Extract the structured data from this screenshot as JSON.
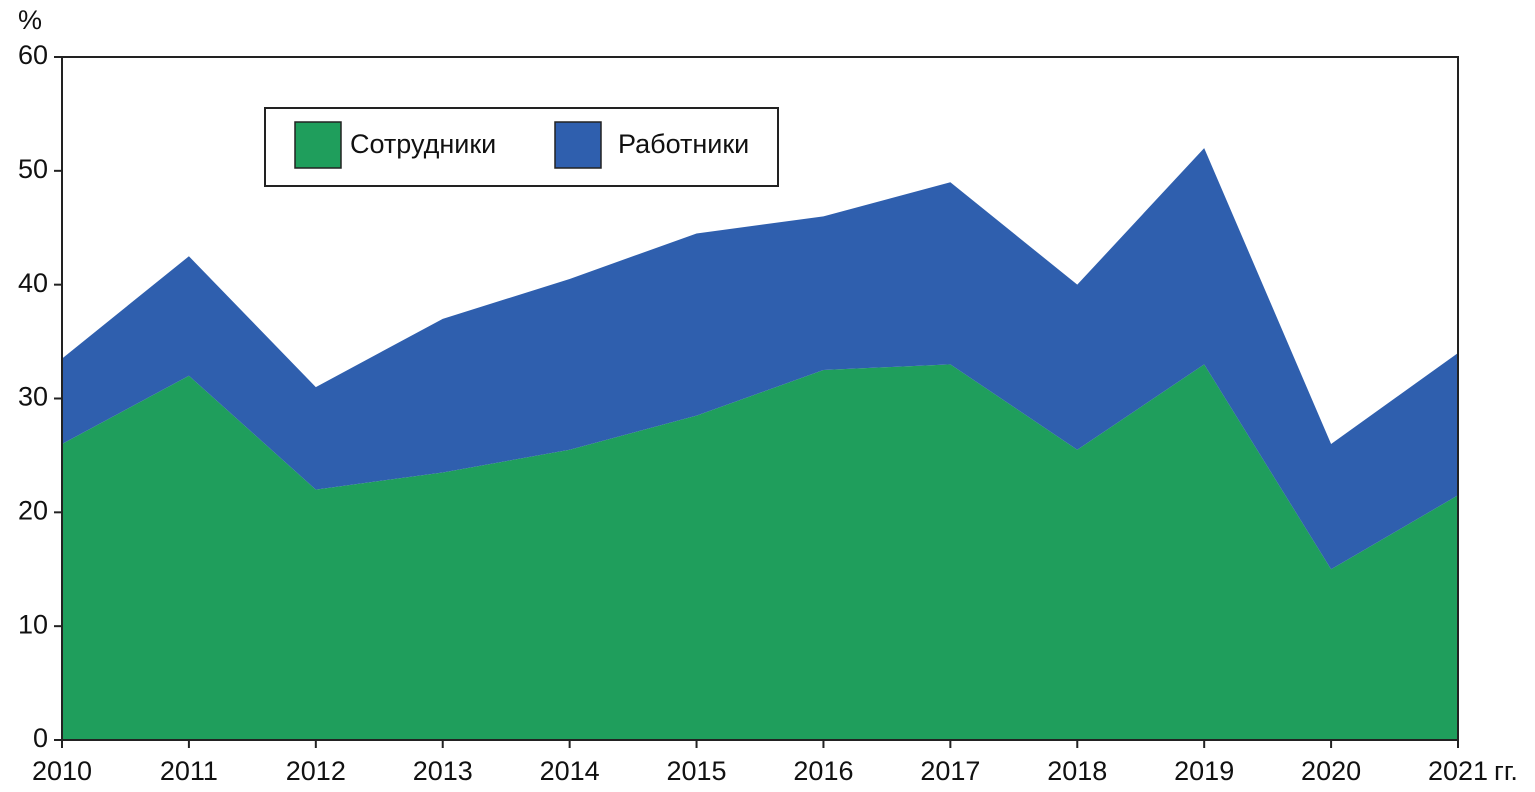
{
  "chart_data": {
    "type": "stacked_area",
    "ylabel": "%",
    "xlabel": "гг.",
    "categories": [
      "2010",
      "2011",
      "2012",
      "2013",
      "2014",
      "2015",
      "2016",
      "2017",
      "2018",
      "2019",
      "2020",
      "2021"
    ],
    "series": [
      {
        "name": "Сотрудники",
        "color": "#1f9e5c",
        "values": [
          26,
          32,
          22,
          23.5,
          25.5,
          28.5,
          32.5,
          33,
          25.5,
          33,
          15,
          21.5
        ]
      },
      {
        "name": "Работники",
        "color": "#2f5fae",
        "values": [
          7.5,
          10.5,
          9,
          13.5,
          15,
          16,
          13.5,
          16,
          14.5,
          19,
          11,
          12.5
        ]
      }
    ],
    "ylim": [
      0,
      60
    ],
    "yticks": [
      0,
      10,
      20,
      30,
      40,
      50,
      60
    ],
    "legend": "upper left",
    "grid": false
  }
}
